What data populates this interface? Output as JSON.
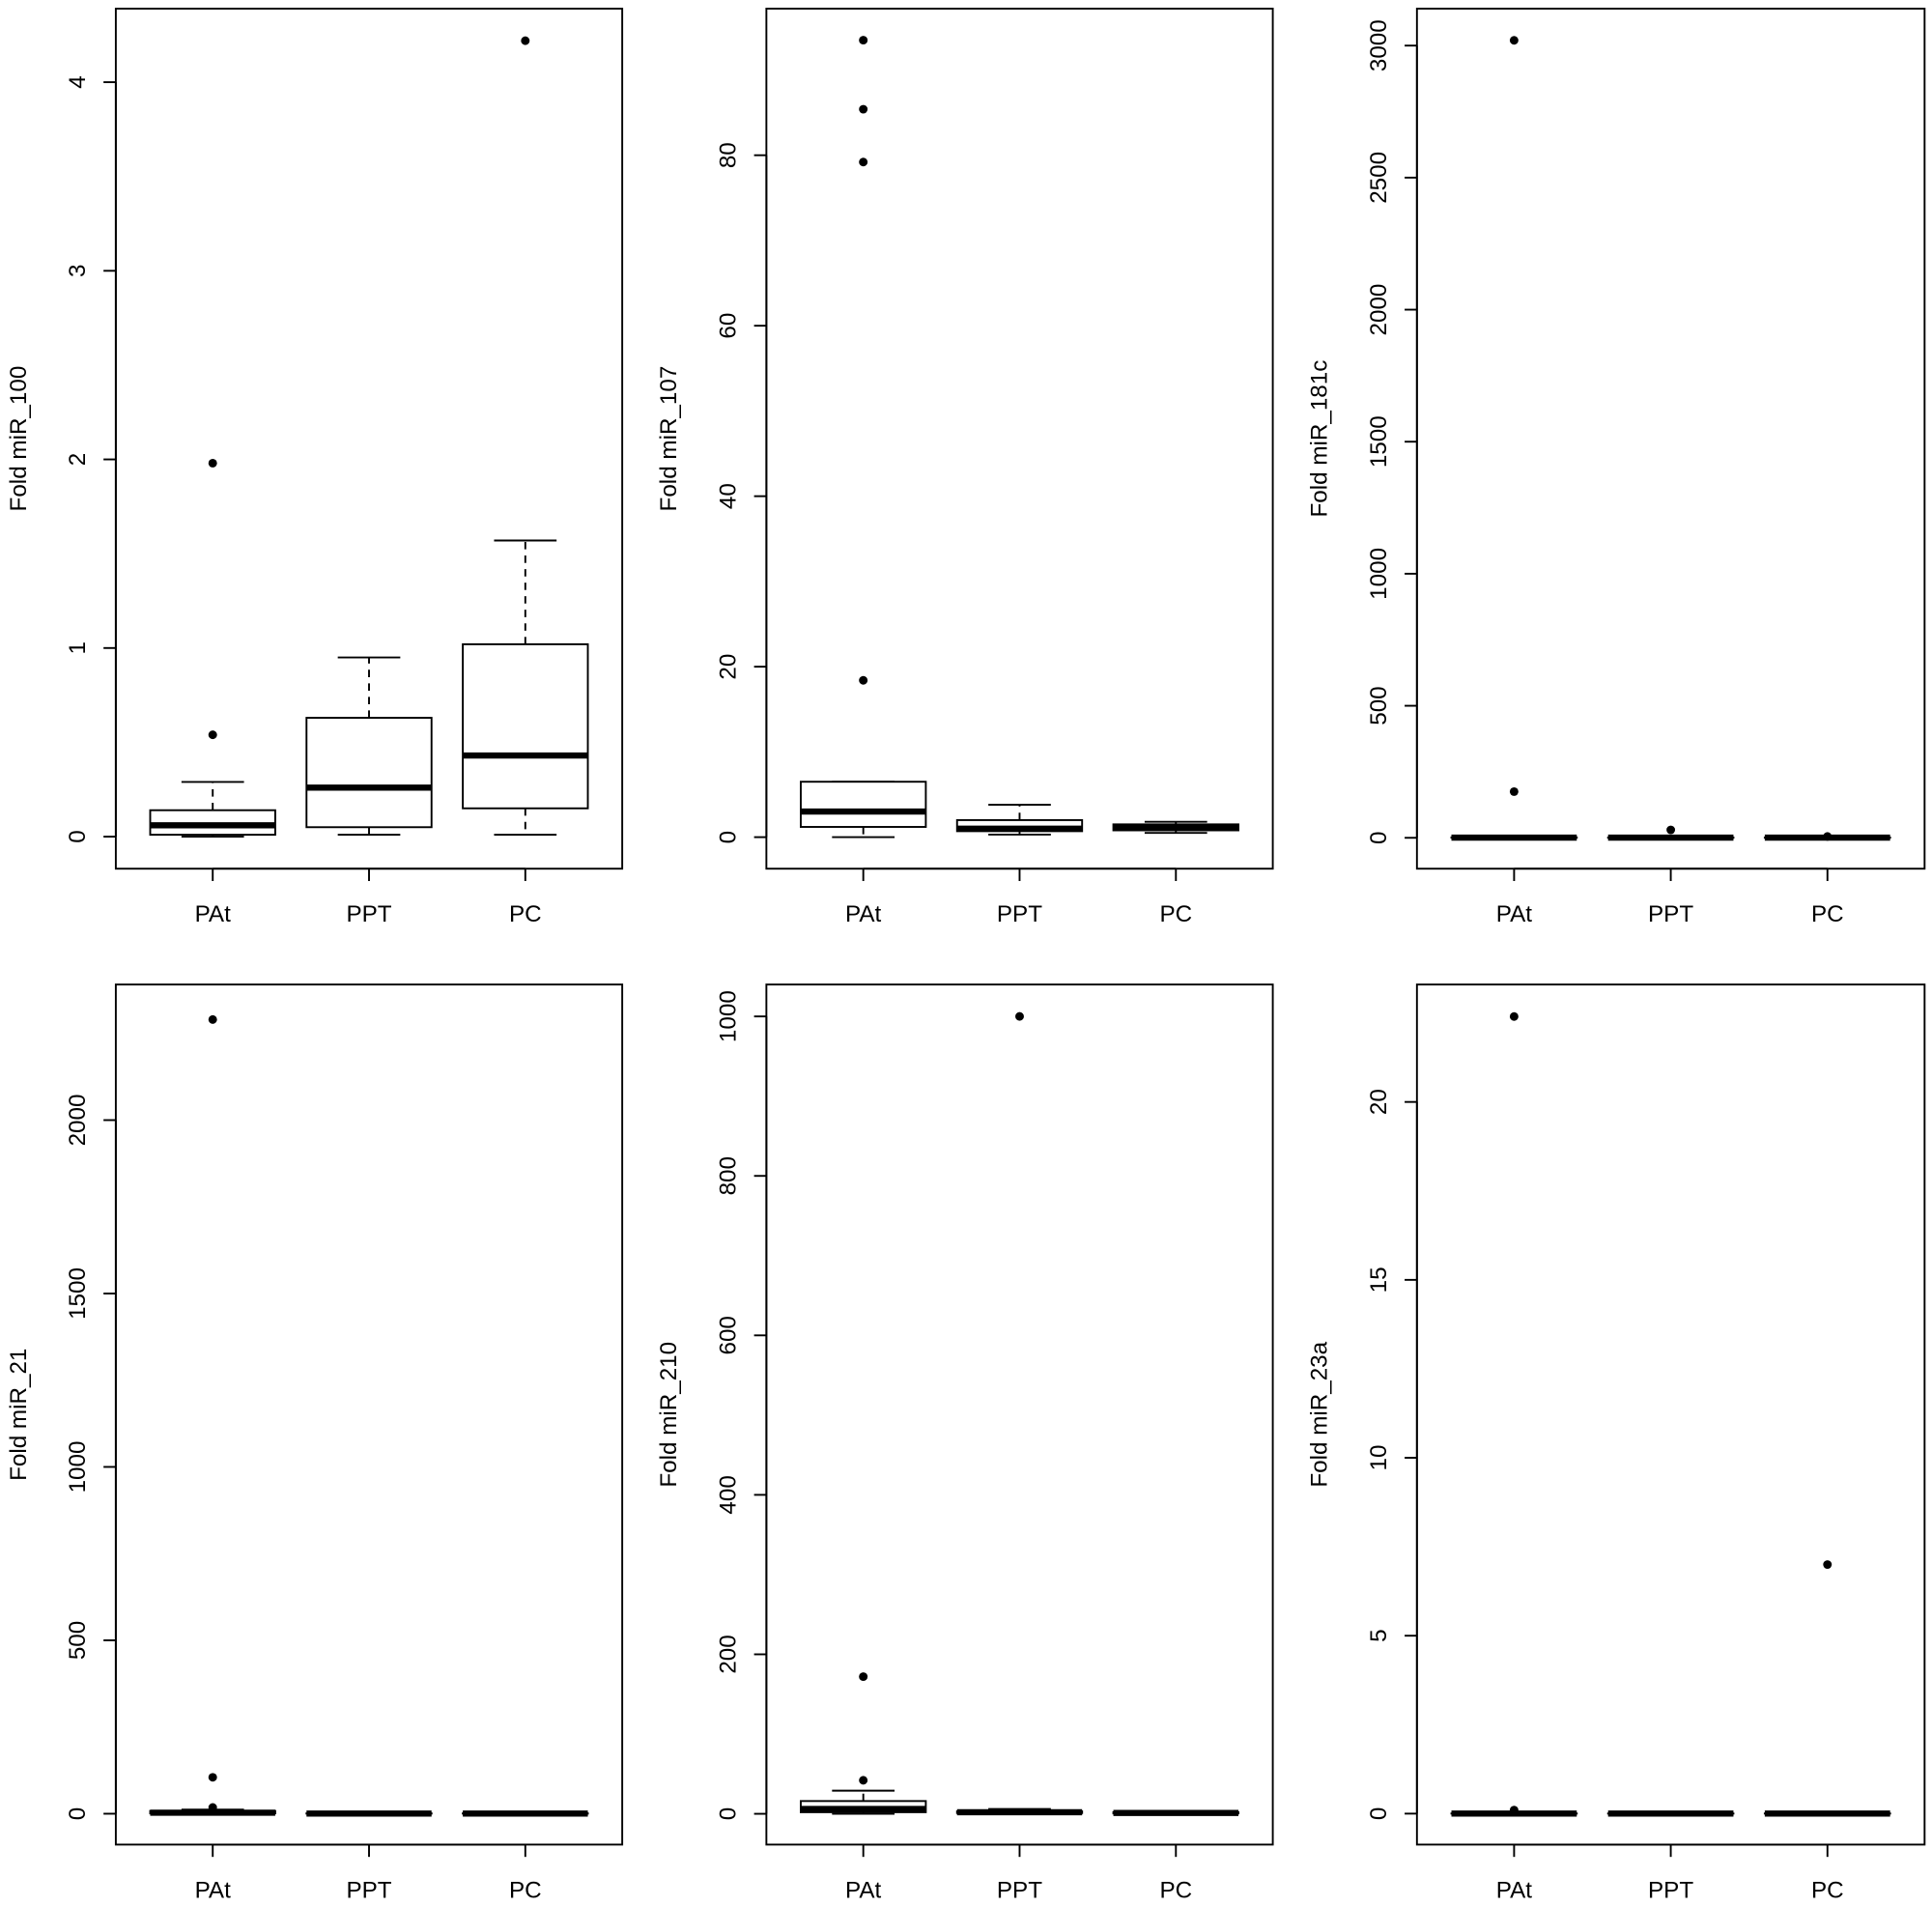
{
  "chart_data": [
    {
      "type": "box",
      "ylabel": "Fold miR_100",
      "categories": [
        "PAt",
        "PPT",
        "PC"
      ],
      "ylim": [
        -0.17,
        4.39
      ],
      "yticks": [
        0,
        1,
        2,
        3,
        4
      ],
      "boxes": [
        {
          "min": 0,
          "q1": 0.01,
          "median": 0.06,
          "q3": 0.14,
          "max": 0.29,
          "outliers": [
            0.54,
            1.98
          ]
        },
        {
          "min": 0.01,
          "q1": 0.05,
          "median": 0.26,
          "q3": 0.63,
          "max": 0.95
        },
        {
          "min": 0.01,
          "q1": 0.15,
          "median": 0.43,
          "q3": 1.02,
          "max": 1.57,
          "outliers": [
            4.22
          ]
        }
      ]
    },
    {
      "type": "box",
      "ylabel": "Fold miR_107",
      "categories": [
        "PAt",
        "PPT",
        "PC"
      ],
      "ylim": [
        -3.7,
        97.2
      ],
      "yticks": [
        0,
        20,
        40,
        60,
        80
      ],
      "boxes": [
        {
          "min": 0,
          "q1": 1.2,
          "median": 3,
          "q3": 6.5,
          "max": 6.5,
          "outliers": [
            18.4,
            79.2,
            85.4,
            93.5
          ]
        },
        {
          "min": 0.3,
          "q1": 0.7,
          "median": 1,
          "q3": 2,
          "max": 3.8
        },
        {
          "min": 0.5,
          "q1": 0.8,
          "median": 1.1,
          "q3": 1.5,
          "max": 1.8
        }
      ]
    },
    {
      "type": "box",
      "ylabel": "Fold miR_181c",
      "categories": [
        "PAt",
        "PPT",
        "PC"
      ],
      "ylim": [
        -117,
        3140
      ],
      "yticks": [
        0,
        500,
        1000,
        1500,
        2000,
        2500,
        3000
      ],
      "boxes": [
        {
          "min": 0,
          "q1": 0.3,
          "median": 0.8,
          "q3": 1.5,
          "max": 3,
          "outliers": [
            175,
            3020
          ]
        },
        {
          "min": 0,
          "q1": 0.2,
          "median": 0.5,
          "q3": 1,
          "max": 2,
          "outliers": [
            30
          ]
        },
        {
          "min": 0,
          "q1": 0.2,
          "median": 0.5,
          "q3": 1,
          "max": 2,
          "outliers": [
            5
          ]
        }
      ]
    },
    {
      "type": "box",
      "ylabel": "Fold miR_21",
      "categories": [
        "PAt",
        "PPT",
        "PC"
      ],
      "ylim": [
        -89,
        2391
      ],
      "yticks": [
        0,
        500,
        1000,
        1500,
        2000
      ],
      "boxes": [
        {
          "min": 0,
          "q1": 1,
          "median": 3,
          "q3": 8,
          "max": 12,
          "outliers": [
            18,
            105,
            2290
          ]
        },
        {
          "min": 0,
          "q1": 0.3,
          "median": 0.6,
          "q3": 1,
          "max": 2
        },
        {
          "min": 0,
          "q1": 0.3,
          "median": 0.6,
          "q3": 1,
          "max": 2
        }
      ]
    },
    {
      "type": "box",
      "ylabel": "Fold miR_210",
      "categories": [
        "PAt",
        "PPT",
        "PC"
      ],
      "ylim": [
        -38.6,
        1040
      ],
      "yticks": [
        0,
        200,
        400,
        600,
        800,
        1000
      ],
      "boxes": [
        {
          "min": 0,
          "q1": 2,
          "median": 6,
          "q3": 16,
          "max": 29,
          "outliers": [
            42,
            172
          ]
        },
        {
          "min": 0,
          "q1": 1,
          "median": 2,
          "q3": 3,
          "max": 6,
          "outliers": [
            1000
          ]
        },
        {
          "min": 0,
          "q1": 0.5,
          "median": 1,
          "q3": 2,
          "max": 3
        }
      ]
    },
    {
      "type": "box",
      "ylabel": "Fold miR_23a",
      "categories": [
        "PAt",
        "PPT",
        "PC"
      ],
      "ylim": [
        -0.87,
        23.3
      ],
      "yticks": [
        0,
        5,
        10,
        15,
        20
      ],
      "boxes": [
        {
          "min": 0,
          "q1": 0.001,
          "median": 0.002,
          "q3": 0.004,
          "max": 0.008,
          "outliers": [
            0.1,
            22.4
          ]
        },
        {
          "min": 0,
          "q1": 0.001,
          "median": 0.002,
          "q3": 0.003,
          "max": 0.005
        },
        {
          "min": 0,
          "q1": 0.001,
          "median": 0.002,
          "q3": 0.004,
          "max": 0.008,
          "outliers": [
            7.0
          ]
        }
      ]
    }
  ]
}
